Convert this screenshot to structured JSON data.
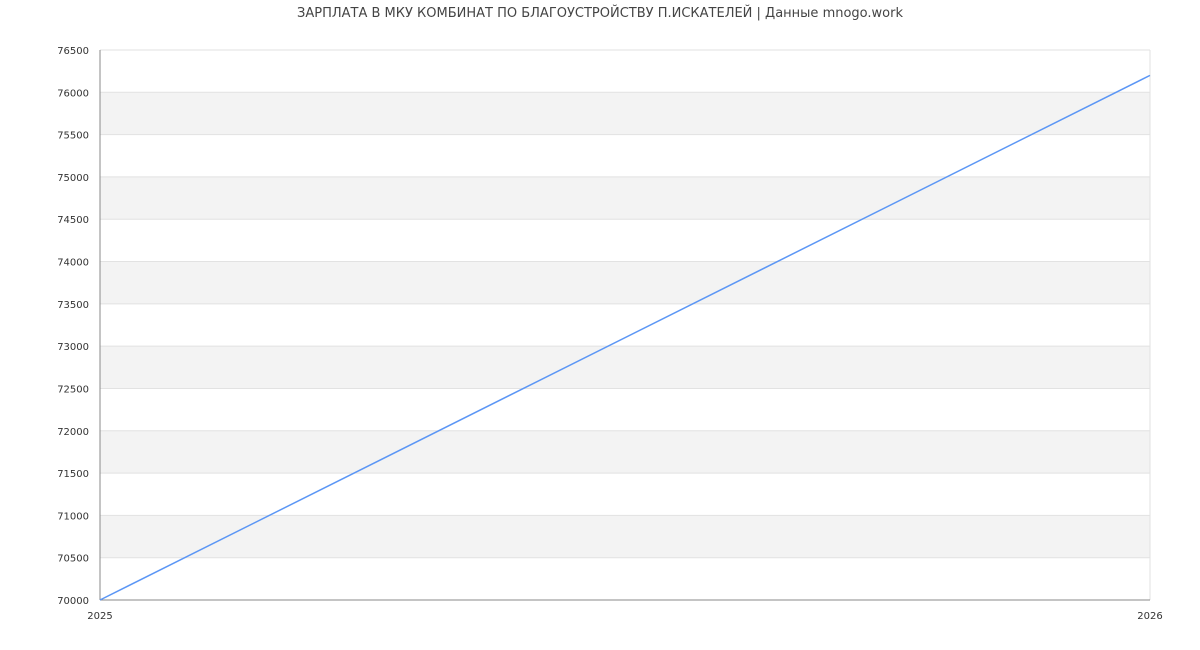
{
  "chart_data": {
    "type": "line",
    "title": "ЗАРПЛАТА В МКУ КОМБИНАТ ПО БЛАГОУСТРОЙСТВУ П.ИСКАТЕЛЕЙ | Данные mnogo.work",
    "xlabel": "",
    "ylabel": "",
    "x": [
      "2025",
      "2026"
    ],
    "series": [
      {
        "values": [
          70000,
          76200
        ]
      }
    ],
    "ylim": [
      70000,
      76500
    ],
    "yticks": [
      70000,
      70500,
      71000,
      71500,
      72000,
      72500,
      73000,
      73500,
      74000,
      74500,
      75000,
      75500,
      76000,
      76500
    ],
    "grid": true,
    "band_color": "#f3f3f3",
    "line_color": "#5b96f5"
  }
}
